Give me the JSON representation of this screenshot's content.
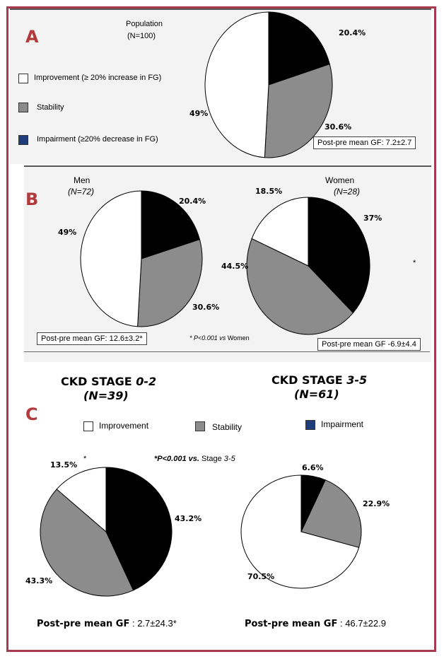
{
  "colors": {
    "improvement": "#ffffff",
    "stability": "#8c8c8c",
    "impairment": "#000000",
    "impairment_legend": "#1f3d7a",
    "accent": "#b33a3a",
    "frame": "#a63a4e"
  },
  "panelA": {
    "letter": "A",
    "population_label": "Population",
    "population_n": "(N=100)",
    "legend": {
      "improvement": "Improvement  (≥ 20% increase in FG)",
      "stability": "Stability",
      "impairment": "Impairment  (≥20% decrease in FG)"
    },
    "gf_label": "Post-pre mean GF:",
    "gf_value": "7.2±2.7"
  },
  "panelB": {
    "letter": "B",
    "men_label": "Men",
    "men_n": "(N=72)",
    "women_label": "Women",
    "women_n": "(N=28)",
    "men_gf_label": "Post-pre mean GF:",
    "men_gf_value": "12.6±3.2*",
    "women_gf_label": "Post-pre mean GF",
    "women_gf_value": "-6.9±4.4",
    "footnote_prefix": "* P<0.001 vs",
    "footnote_suffix": "Women",
    "star": "*"
  },
  "panelC": {
    "letter": "C",
    "left_title": "CKD STAGE",
    "left_stage": "0-2",
    "left_n": "(N=39)",
    "right_title": "CKD STAGE",
    "right_stage": "3-5",
    "right_n": "(N=61)",
    "legend": {
      "improvement": "Improvement",
      "stability": "Stability",
      "impairment": "Impairment"
    },
    "footnote_prefix": "*P<0.001 vs.",
    "footnote_stage": "Stage",
    "footnote_stage_num": "3-5",
    "star": "*",
    "left_gf_label": "Post-pre mean GF",
    "left_gf_value": ": 2.7±24.3*",
    "right_gf_label": "Post-pre mean GF",
    "right_gf_value": ": 46.7±22.9"
  },
  "chart_data": [
    {
      "type": "pie",
      "title": "Population (N=100)",
      "slices": [
        {
          "name": "Impairment",
          "value": 20.4,
          "label": "20.4%"
        },
        {
          "name": "Stability",
          "value": 30.6,
          "label": "30.6%"
        },
        {
          "name": "Improvement",
          "value": 49,
          "label": "49%"
        }
      ]
    },
    {
      "type": "pie",
      "title": "Men (N=72)",
      "slices": [
        {
          "name": "Impairment",
          "value": 20.4,
          "label": "20.4%"
        },
        {
          "name": "Stability",
          "value": 30.6,
          "label": "30.6%"
        },
        {
          "name": "Improvement",
          "value": 49,
          "label": "49%"
        }
      ]
    },
    {
      "type": "pie",
      "title": "Women (N=28)",
      "slices": [
        {
          "name": "Impairment",
          "value": 37,
          "label": "37%"
        },
        {
          "name": "Stability",
          "value": 44.5,
          "label": "44.5%"
        },
        {
          "name": "Improvement",
          "value": 18.5,
          "label": "18.5%"
        }
      ]
    },
    {
      "type": "pie",
      "title": "CKD STAGE 0-2 (N=39)",
      "slices": [
        {
          "name": "Impairment",
          "value": 43.2,
          "label": "43.2%"
        },
        {
          "name": "Stability",
          "value": 43.3,
          "label": "43.3%"
        },
        {
          "name": "Improvement",
          "value": 13.5,
          "label": "13.5%"
        }
      ]
    },
    {
      "type": "pie",
      "title": "CKD STAGE 3-5 (N=61)",
      "slices": [
        {
          "name": "Impairment",
          "value": 6.6,
          "label": "6.6%"
        },
        {
          "name": "Stability",
          "value": 22.9,
          "label": "22.9%"
        },
        {
          "name": "Improvement",
          "value": 70.5,
          "label": "70.5%"
        }
      ]
    }
  ]
}
